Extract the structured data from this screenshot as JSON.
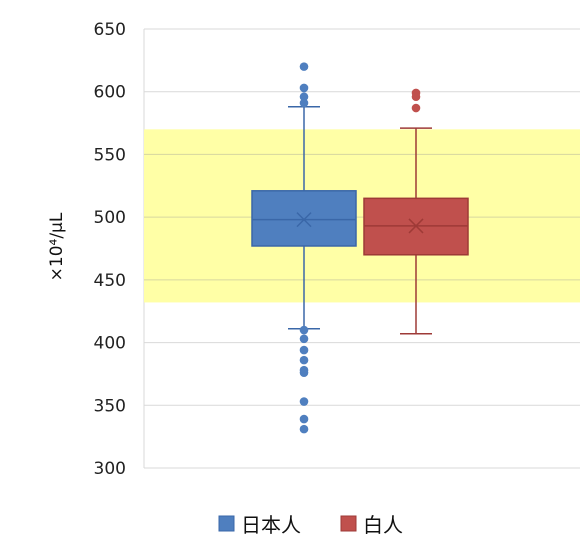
{
  "chart_data": {
    "type": "box",
    "ylabel": "×10⁴/μL",
    "ylim": [
      300,
      650
    ],
    "yticks": [
      300,
      350,
      400,
      450,
      500,
      550,
      600,
      650
    ],
    "grid": true,
    "legend_position": "bottom",
    "reference_band": {
      "low": 432,
      "high": 570,
      "color": "#ffffa6"
    },
    "series": [
      {
        "name": "日本人",
        "color": "#4f7fbf",
        "border": "#3a67a8",
        "whisker_low": 411,
        "q1": 477,
        "median": 498,
        "q3": 521,
        "whisker_high": 588,
        "mean": 498,
        "outliers": [
          620,
          603,
          596,
          591,
          410,
          403,
          394,
          386,
          378,
          376,
          353,
          339,
          331
        ]
      },
      {
        "name": "白人",
        "color": "#c0504d",
        "border": "#9e3a37",
        "whisker_low": 407,
        "q1": 470,
        "median": 493,
        "q3": 515,
        "whisker_high": 571,
        "mean": 493,
        "outliers": [
          599,
          596,
          587
        ]
      }
    ]
  }
}
